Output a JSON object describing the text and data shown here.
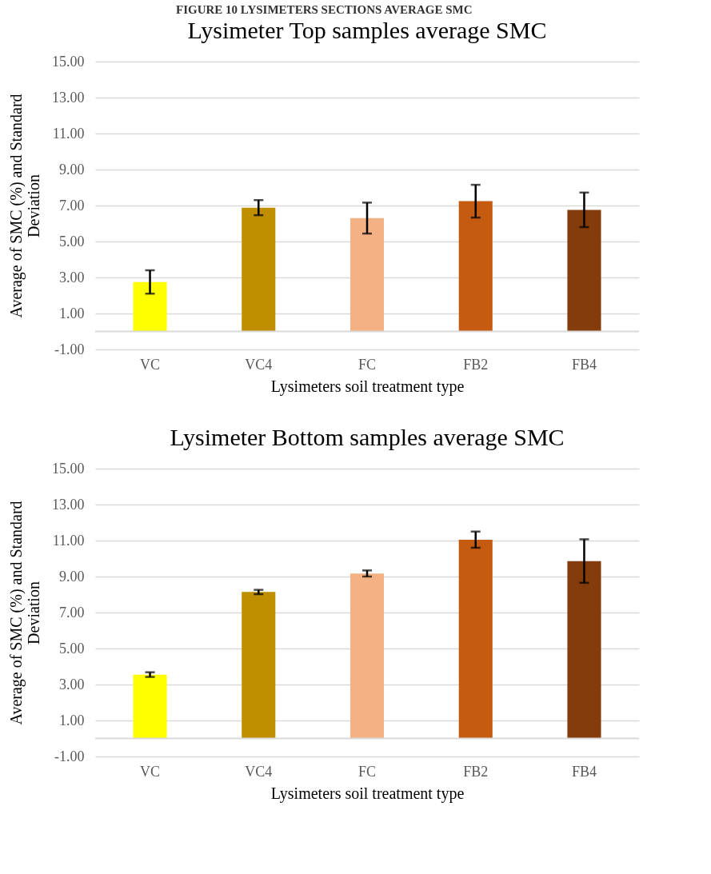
{
  "chart_data": [
    {
      "type": "bar",
      "title": "Lysimeter Top samples average SMC",
      "xlabel": "Lysimeters soil treatment type",
      "ylabel": "Average of SMC (%) and Standard Deviation",
      "annotations": [
        "FIGURE 10 LYSIMETERS SECTIONS AVERAGE SMC"
      ],
      "categories": [
        "VC",
        "VC4",
        "FC",
        "FB2",
        "FB4"
      ],
      "values": [
        2.75,
        6.88,
        6.3,
        7.24,
        6.76
      ],
      "errors": [
        0.65,
        0.42,
        0.86,
        0.91,
        0.96
      ],
      "colors": [
        "#ffff00",
        "#bf8f00",
        "#f4b183",
        "#c55a11",
        "#843c0c"
      ],
      "ylim": [
        -1,
        15
      ],
      "yticks": [
        {
          "value": -1,
          "label": "-1.00"
        },
        {
          "value": 1,
          "label": "1.00"
        },
        {
          "value": 3,
          "label": "3.00"
        },
        {
          "value": 5,
          "label": "5.00"
        },
        {
          "value": 7,
          "label": "7.00"
        },
        {
          "value": 9,
          "label": "9.00"
        },
        {
          "value": 11,
          "label": "11.00"
        },
        {
          "value": 13,
          "label": "13.00"
        },
        {
          "value": 15,
          "label": "15.00"
        }
      ],
      "grid": "y"
    },
    {
      "type": "bar",
      "title": "Lysimeter Bottom samples average SMC",
      "xlabel": "Lysimeters soil treatment type",
      "ylabel": "Average of SMC (%) and Standard Deviation",
      "categories": [
        "VC",
        "VC4",
        "FC",
        "FB2",
        "FB4"
      ],
      "values": [
        3.55,
        8.14,
        9.17,
        11.05,
        9.86
      ],
      "errors": [
        0.13,
        0.12,
        0.17,
        0.45,
        1.21
      ],
      "colors": [
        "#ffff00",
        "#bf8f00",
        "#f4b183",
        "#c55a11",
        "#843c0c"
      ],
      "ylim": [
        -1,
        15
      ],
      "yticks": [
        {
          "value": -1,
          "label": "-1.00"
        },
        {
          "value": 1,
          "label": "1.00"
        },
        {
          "value": 3,
          "label": "3.00"
        },
        {
          "value": 5,
          "label": "5.00"
        },
        {
          "value": 7,
          "label": "7.00"
        },
        {
          "value": 9,
          "label": "9.00"
        },
        {
          "value": 11,
          "label": "11.00"
        },
        {
          "value": 13,
          "label": "13.00"
        },
        {
          "value": 15,
          "label": "15.00"
        }
      ],
      "grid": "y"
    }
  ]
}
